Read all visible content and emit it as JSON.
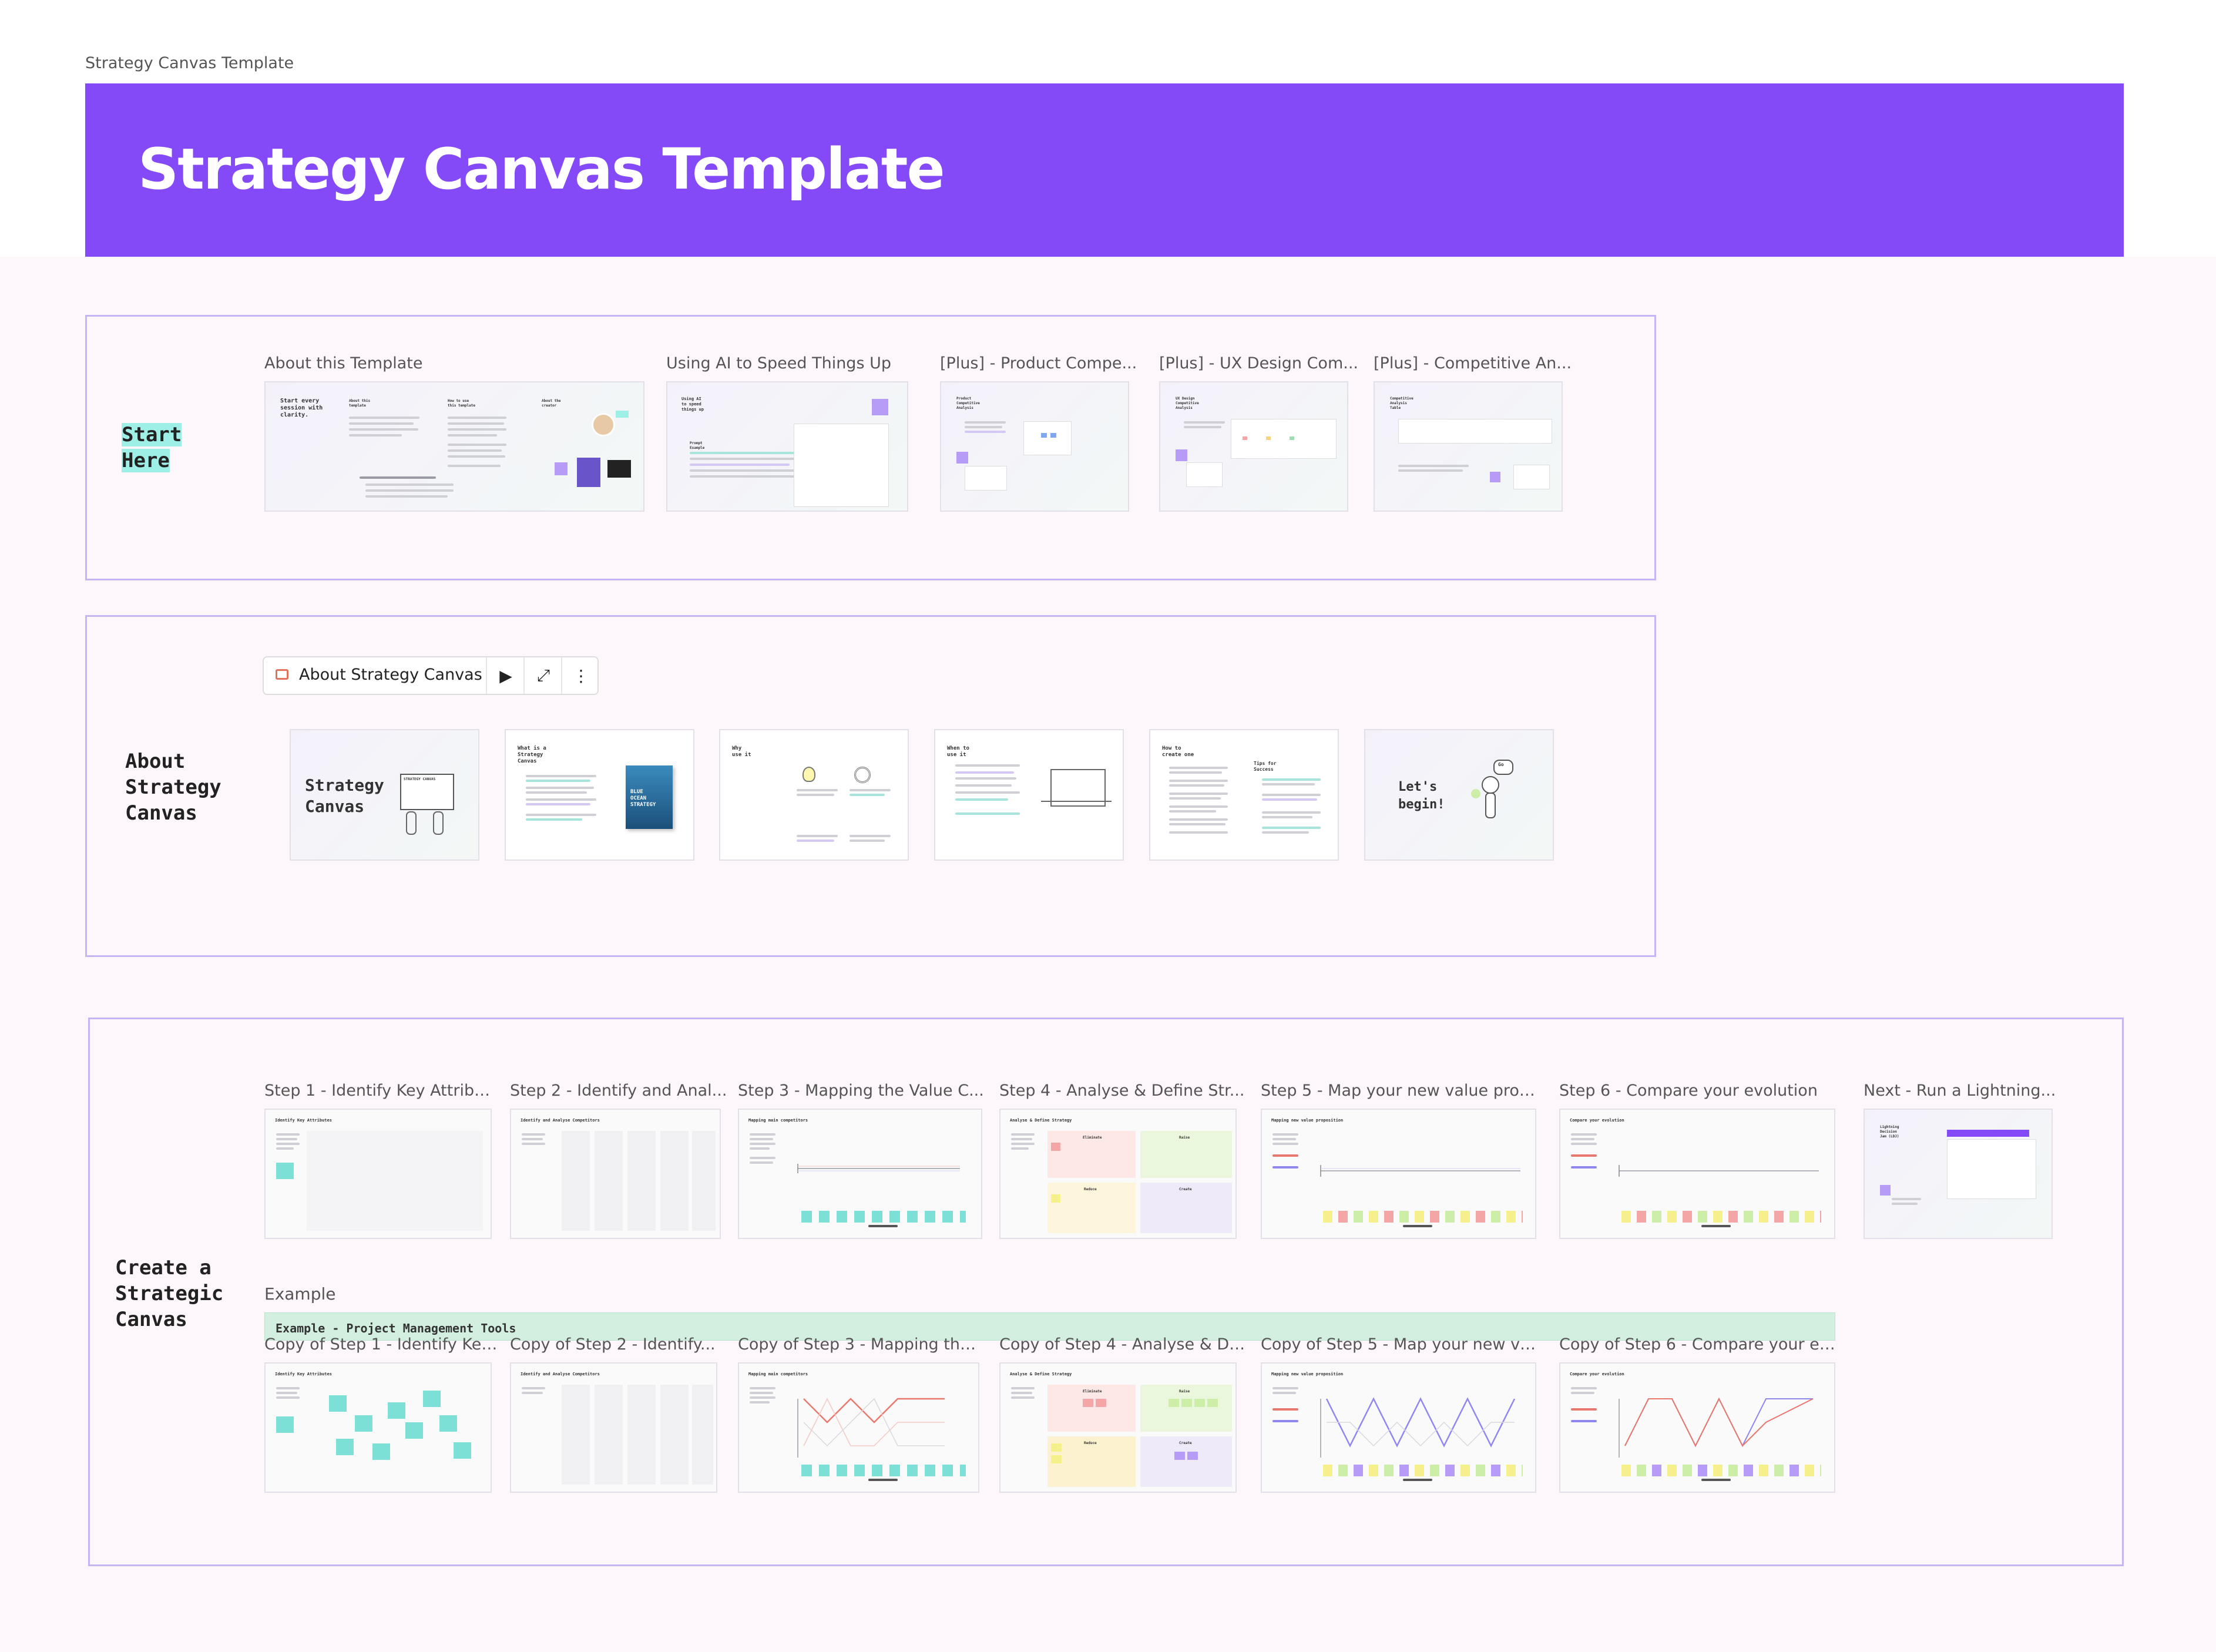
{
  "board": {
    "name": "Strategy Canvas Template"
  },
  "banner": {
    "title": "Strategy Canvas Template"
  },
  "sections": {
    "start": {
      "label": "Start\nHere"
    },
    "about": {
      "label": "About\nStrategy\nCanvas"
    },
    "create": {
      "label": "Create a\nStrategic\nCanvas"
    }
  },
  "start_frames": [
    {
      "title": "About this Template",
      "heading": "Start every\nsession with\nclarity.",
      "col1": "About this\ntemplate",
      "col2": "How to use\nthis template",
      "col3": "About the\ncreator"
    },
    {
      "title": "Using AI to Speed Things Up",
      "heading": "Using AI\nto speed\nthings up",
      "sub": "Prompt\nExample"
    },
    {
      "title": "[Plus] - Product Compe...",
      "heading": "Product\nCompetitive\nAnalysis"
    },
    {
      "title": "[Plus] - UX Design Com...",
      "heading": "UX Design\nCompetitive\nAnalysis"
    },
    {
      "title": "[Plus] - Competitive An...",
      "heading": "Competitive\nAnalysis\nTable"
    }
  ],
  "presentation_toolbar": {
    "title": "About Strategy Canvas",
    "icons": [
      "presentation-icon",
      "play-icon",
      "expand-icon",
      "more-icon"
    ]
  },
  "about_frames": [
    {
      "title": "Strategy\nCanvas",
      "caption": "STRATEGY CANVAS"
    },
    {
      "title": "What is a\nStrategy\nCanvas",
      "book": "BLUE\nOCEAN\nSTRATEGY"
    },
    {
      "title": "Why\nuse it"
    },
    {
      "title": "When to\nuse it"
    },
    {
      "title": "How to\ncreate one",
      "tips": "Tips for\nSuccess"
    },
    {
      "title": "Let's\nbegin!",
      "bubble": "Go"
    }
  ],
  "step_frames": [
    {
      "title": "Step 1 - Identify Key Attribut...",
      "heading": "Identify Key Attributes"
    },
    {
      "title": "Step 2 - Identify and Anal...",
      "heading": "Identify and Analyse Competitors"
    },
    {
      "title": "Step 3 - Mapping the Value C...",
      "heading": "Mapping main competitors"
    },
    {
      "title": "Step 4 - Analyse & Define Str...",
      "heading": "Analyse & Define Strategy",
      "quads": [
        "Eliminate",
        "Raise",
        "Reduce",
        "Create"
      ]
    },
    {
      "title": "Step 5 - Map your new value prop...",
      "heading": "Mapping new value proposition"
    },
    {
      "title": "Step 6 - Compare your evolution",
      "heading": "Compare your evolution"
    },
    {
      "title": "Next - Run a Lightning...",
      "heading": "Lightning\nDecision\nJam (LDJ)"
    }
  ],
  "example": {
    "label": "Example",
    "banner": "Example - Project Management Tools"
  },
  "copy_frames": [
    {
      "title": "Copy of Step 1 - Identify Key...",
      "heading": "Identify Key Attributes"
    },
    {
      "title": "Copy of Step 2 - Identify...",
      "heading": "Identify and Analyse Competitors"
    },
    {
      "title": "Copy of Step 3 - Mapping the...",
      "heading": "Mapping main competitors"
    },
    {
      "title": "Copy of Step 4 - Analyse & De...",
      "heading": "Analyse & Define Strategy",
      "quads": [
        "Eliminate",
        "Raise",
        "Reduce",
        "Create"
      ]
    },
    {
      "title": "Copy of Step 5 - Map your new val...",
      "heading": "Mapping new value proposition"
    },
    {
      "title": "Copy of Step 6 - Compare your ev...",
      "heading": "Compare your evolution"
    }
  ],
  "colors": {
    "accent": "#854af8",
    "section_border": "#c6b5f3",
    "highlight": "#9ef0e6",
    "teal": "#7de0d6",
    "purple": "#b79cf7",
    "yellow": "#f5ef8c",
    "pink": "#f4a6a6",
    "green": "#cdeea8",
    "red_line": "#e8786b",
    "blue_line": "#8f86ee"
  }
}
